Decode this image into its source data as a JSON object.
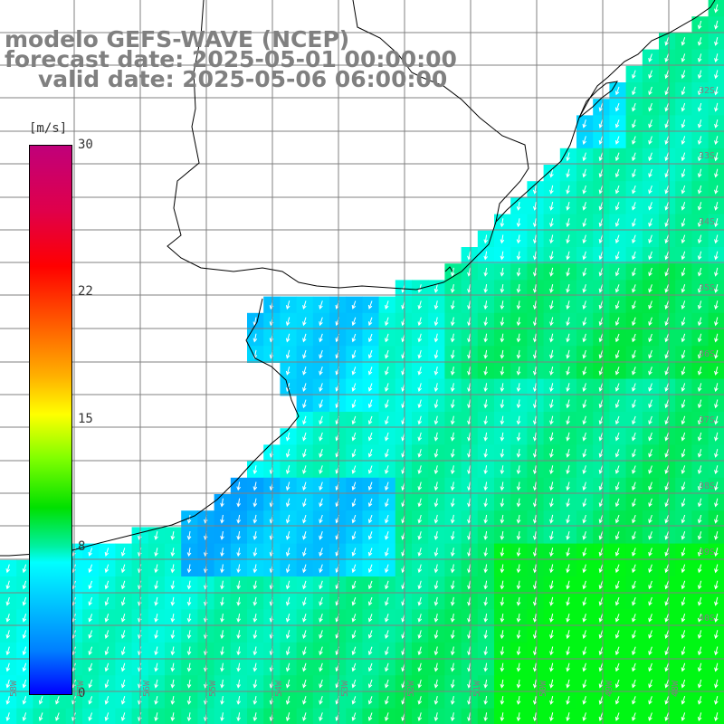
{
  "title": {
    "model": "modelo GEFS-WAVE (NCEP)",
    "forecast": "forecast date: 2025-05-01 00:00:00",
    "valid": "valid date: 2025-05-06 06:00:00"
  },
  "colorbar": {
    "units": "[m/s]",
    "min": 0,
    "max": 30,
    "tick_labels": [
      "30",
      "22",
      "15",
      "8",
      "0"
    ],
    "ticks": [
      30,
      22,
      15,
      8,
      0
    ]
  },
  "map": {
    "lat_labels": [
      "32S",
      "33S",
      "34S",
      "35S",
      "36S",
      "37S",
      "38S",
      "39S",
      "40S"
    ],
    "lat_values": [
      -32,
      -33,
      -34,
      -35,
      -36,
      -37,
      -38,
      -39,
      -40
    ],
    "lon_labels": [
      "58W",
      "57W",
      "56W",
      "55W",
      "54W",
      "53W",
      "52W",
      "51W",
      "50W",
      "49W",
      "48W"
    ],
    "lon_values": [
      -58,
      -57,
      -56,
      -55,
      -54,
      -53,
      -52,
      -51,
      -50,
      -49,
      -48
    ],
    "land_color": "#ffffff",
    "grid_color": "#808080",
    "coast_color": "#000000",
    "arrow_color": "#ffffff",
    "wind_direction": "from north-northeast (arrows point south-southwest)"
  }
}
